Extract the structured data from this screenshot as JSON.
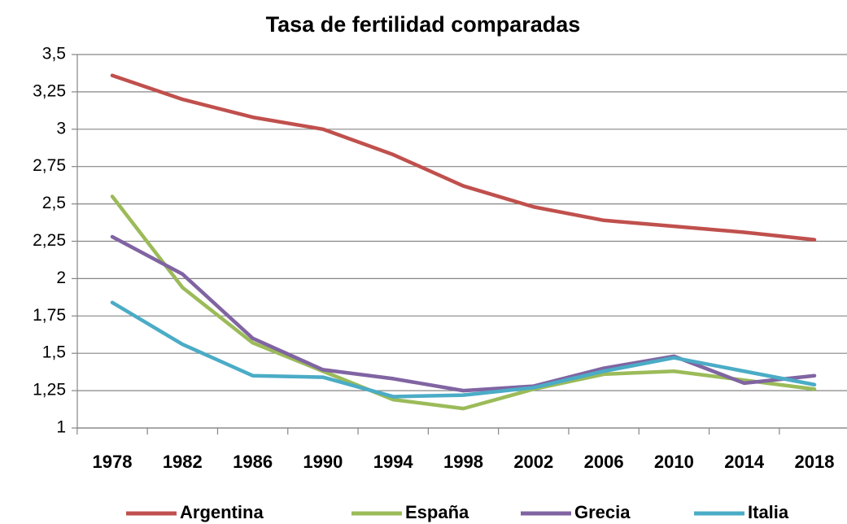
{
  "chart_data": {
    "type": "line",
    "title": "Tasa de fertilidad comparadas",
    "categories": [
      "1978",
      "1982",
      "1986",
      "1990",
      "1994",
      "1998",
      "2002",
      "2006",
      "2010",
      "2014",
      "2018"
    ],
    "series": [
      {
        "name": "Argentina",
        "color": "#c0504d",
        "values": [
          3.36,
          3.2,
          3.08,
          3.0,
          2.83,
          2.62,
          2.48,
          2.39,
          2.35,
          2.31,
          2.26
        ]
      },
      {
        "name": "España",
        "color": "#9bbb59",
        "values": [
          2.55,
          1.94,
          1.57,
          1.38,
          1.19,
          1.13,
          1.26,
          1.36,
          1.38,
          1.32,
          1.26
        ]
      },
      {
        "name": "Grecia",
        "color": "#8064a2",
        "values": [
          2.28,
          2.03,
          1.6,
          1.39,
          1.33,
          1.25,
          1.28,
          1.4,
          1.48,
          1.3,
          1.35
        ]
      },
      {
        "name": "Italia",
        "color": "#4bacc6",
        "values": [
          1.84,
          1.56,
          1.35,
          1.34,
          1.21,
          1.22,
          1.27,
          1.38,
          1.47,
          1.38,
          1.29
        ]
      }
    ],
    "ylim": [
      1,
      3.5
    ],
    "yticks": [
      1,
      {
        "value": 1.25,
        "label": "1,25"
      },
      {
        "value": 1.5,
        "label": "1,5"
      },
      {
        "value": 1.75,
        "label": "1,75"
      },
      2,
      {
        "value": 2.25,
        "label": "2,25"
      },
      {
        "value": 2.5,
        "label": "2,5"
      },
      {
        "value": 2.75,
        "label": "2,75"
      },
      3,
      {
        "value": 3.25,
        "label": "3,25"
      },
      {
        "value": 3.5,
        "label": "3,5"
      }
    ],
    "grid": true,
    "legend": "bottom"
  }
}
